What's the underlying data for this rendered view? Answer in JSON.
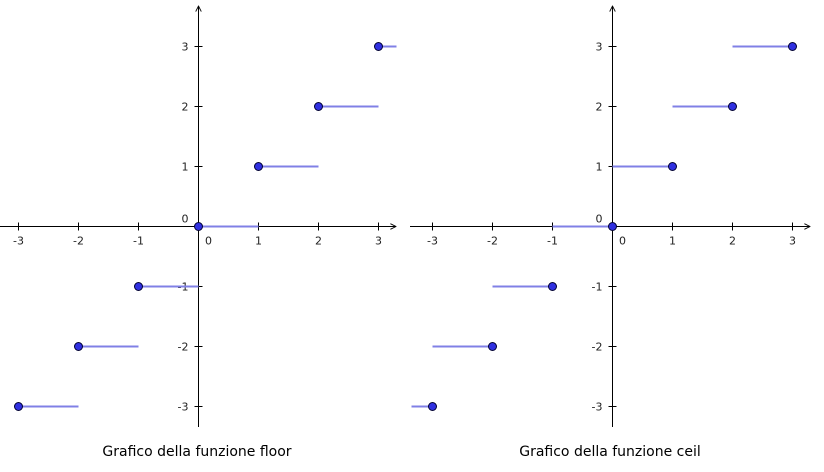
{
  "colors": {
    "segment": "#8080e6",
    "point_fill": "#3030e0",
    "point_stroke": "#000033",
    "axis": "#000000"
  },
  "captions": {
    "floor": "Grafico della funzione floor",
    "ceil": "Grafico della funzione ceil"
  },
  "chart_data": [
    {
      "type": "line",
      "title": "Grafico della funzione floor",
      "function": "floor",
      "xlabel": "",
      "ylabel": "",
      "xlim": [
        -3.3,
        3.3
      ],
      "ylim": [
        -3.3,
        3.65
      ],
      "x_ticks": [
        -3,
        -2,
        -1,
        0,
        1,
        2,
        3
      ],
      "y_ticks": [
        -3,
        -2,
        -1,
        0,
        1,
        2,
        3
      ],
      "x_tick_labels": [
        "-3",
        "-2",
        "-1",
        "0",
        "1",
        "2",
        "3"
      ],
      "y_tick_labels": [
        "-3",
        "-2",
        "-1",
        "0",
        "1",
        "2",
        "3"
      ],
      "grid": false,
      "series": [
        {
          "values": [
            {
              "x": [
                -3,
                -2
              ],
              "y": -3,
              "dot": -3
            },
            {
              "x": [
                -2,
                -1
              ],
              "y": -2,
              "dot": -2
            },
            {
              "x": [
                -1,
                0
              ],
              "y": -1,
              "dot": -1
            },
            {
              "x": [
                0,
                1
              ],
              "y": 0,
              "dot": 0
            },
            {
              "x": [
                1,
                2
              ],
              "y": 1,
              "dot": 1
            },
            {
              "x": [
                2,
                3
              ],
              "y": 2,
              "dot": 2
            },
            {
              "x": [
                3,
                3.3
              ],
              "y": 3,
              "dot": 3
            }
          ]
        }
      ]
    },
    {
      "type": "line",
      "title": "Grafico della funzione ceil",
      "function": "ceil",
      "xlabel": "",
      "ylabel": "",
      "xlim": [
        -3.3,
        3.3
      ],
      "ylim": [
        -3.3,
        3.65
      ],
      "x_ticks": [
        -3,
        -2,
        -1,
        0,
        1,
        2,
        3
      ],
      "y_ticks": [
        -3,
        -2,
        -1,
        0,
        1,
        2,
        3
      ],
      "x_tick_labels": [
        "-3",
        "-2",
        "-1",
        "0",
        "1",
        "2",
        "3"
      ],
      "y_tick_labels": [
        "-3",
        "-2",
        "-1",
        "0",
        "1",
        "2",
        "3"
      ],
      "grid": false,
      "series": [
        {
          "values": [
            {
              "x": [
                -3.35,
                -3
              ],
              "y": -3,
              "dot": -3
            },
            {
              "x": [
                -2,
                -1
              ],
              "y": -1,
              "dot": -1
            },
            {
              "x": [
                -3,
                -2
              ],
              "y": -2,
              "dot": -2
            },
            {
              "x": [
                -1,
                0
              ],
              "y": 0,
              "dot": 0
            },
            {
              "x": [
                0,
                1
              ],
              "y": 1,
              "dot": 1
            },
            {
              "x": [
                1,
                2
              ],
              "y": 2,
              "dot": 2
            },
            {
              "x": [
                2,
                3
              ],
              "y": 3,
              "dot": 3
            }
          ]
        }
      ]
    }
  ]
}
